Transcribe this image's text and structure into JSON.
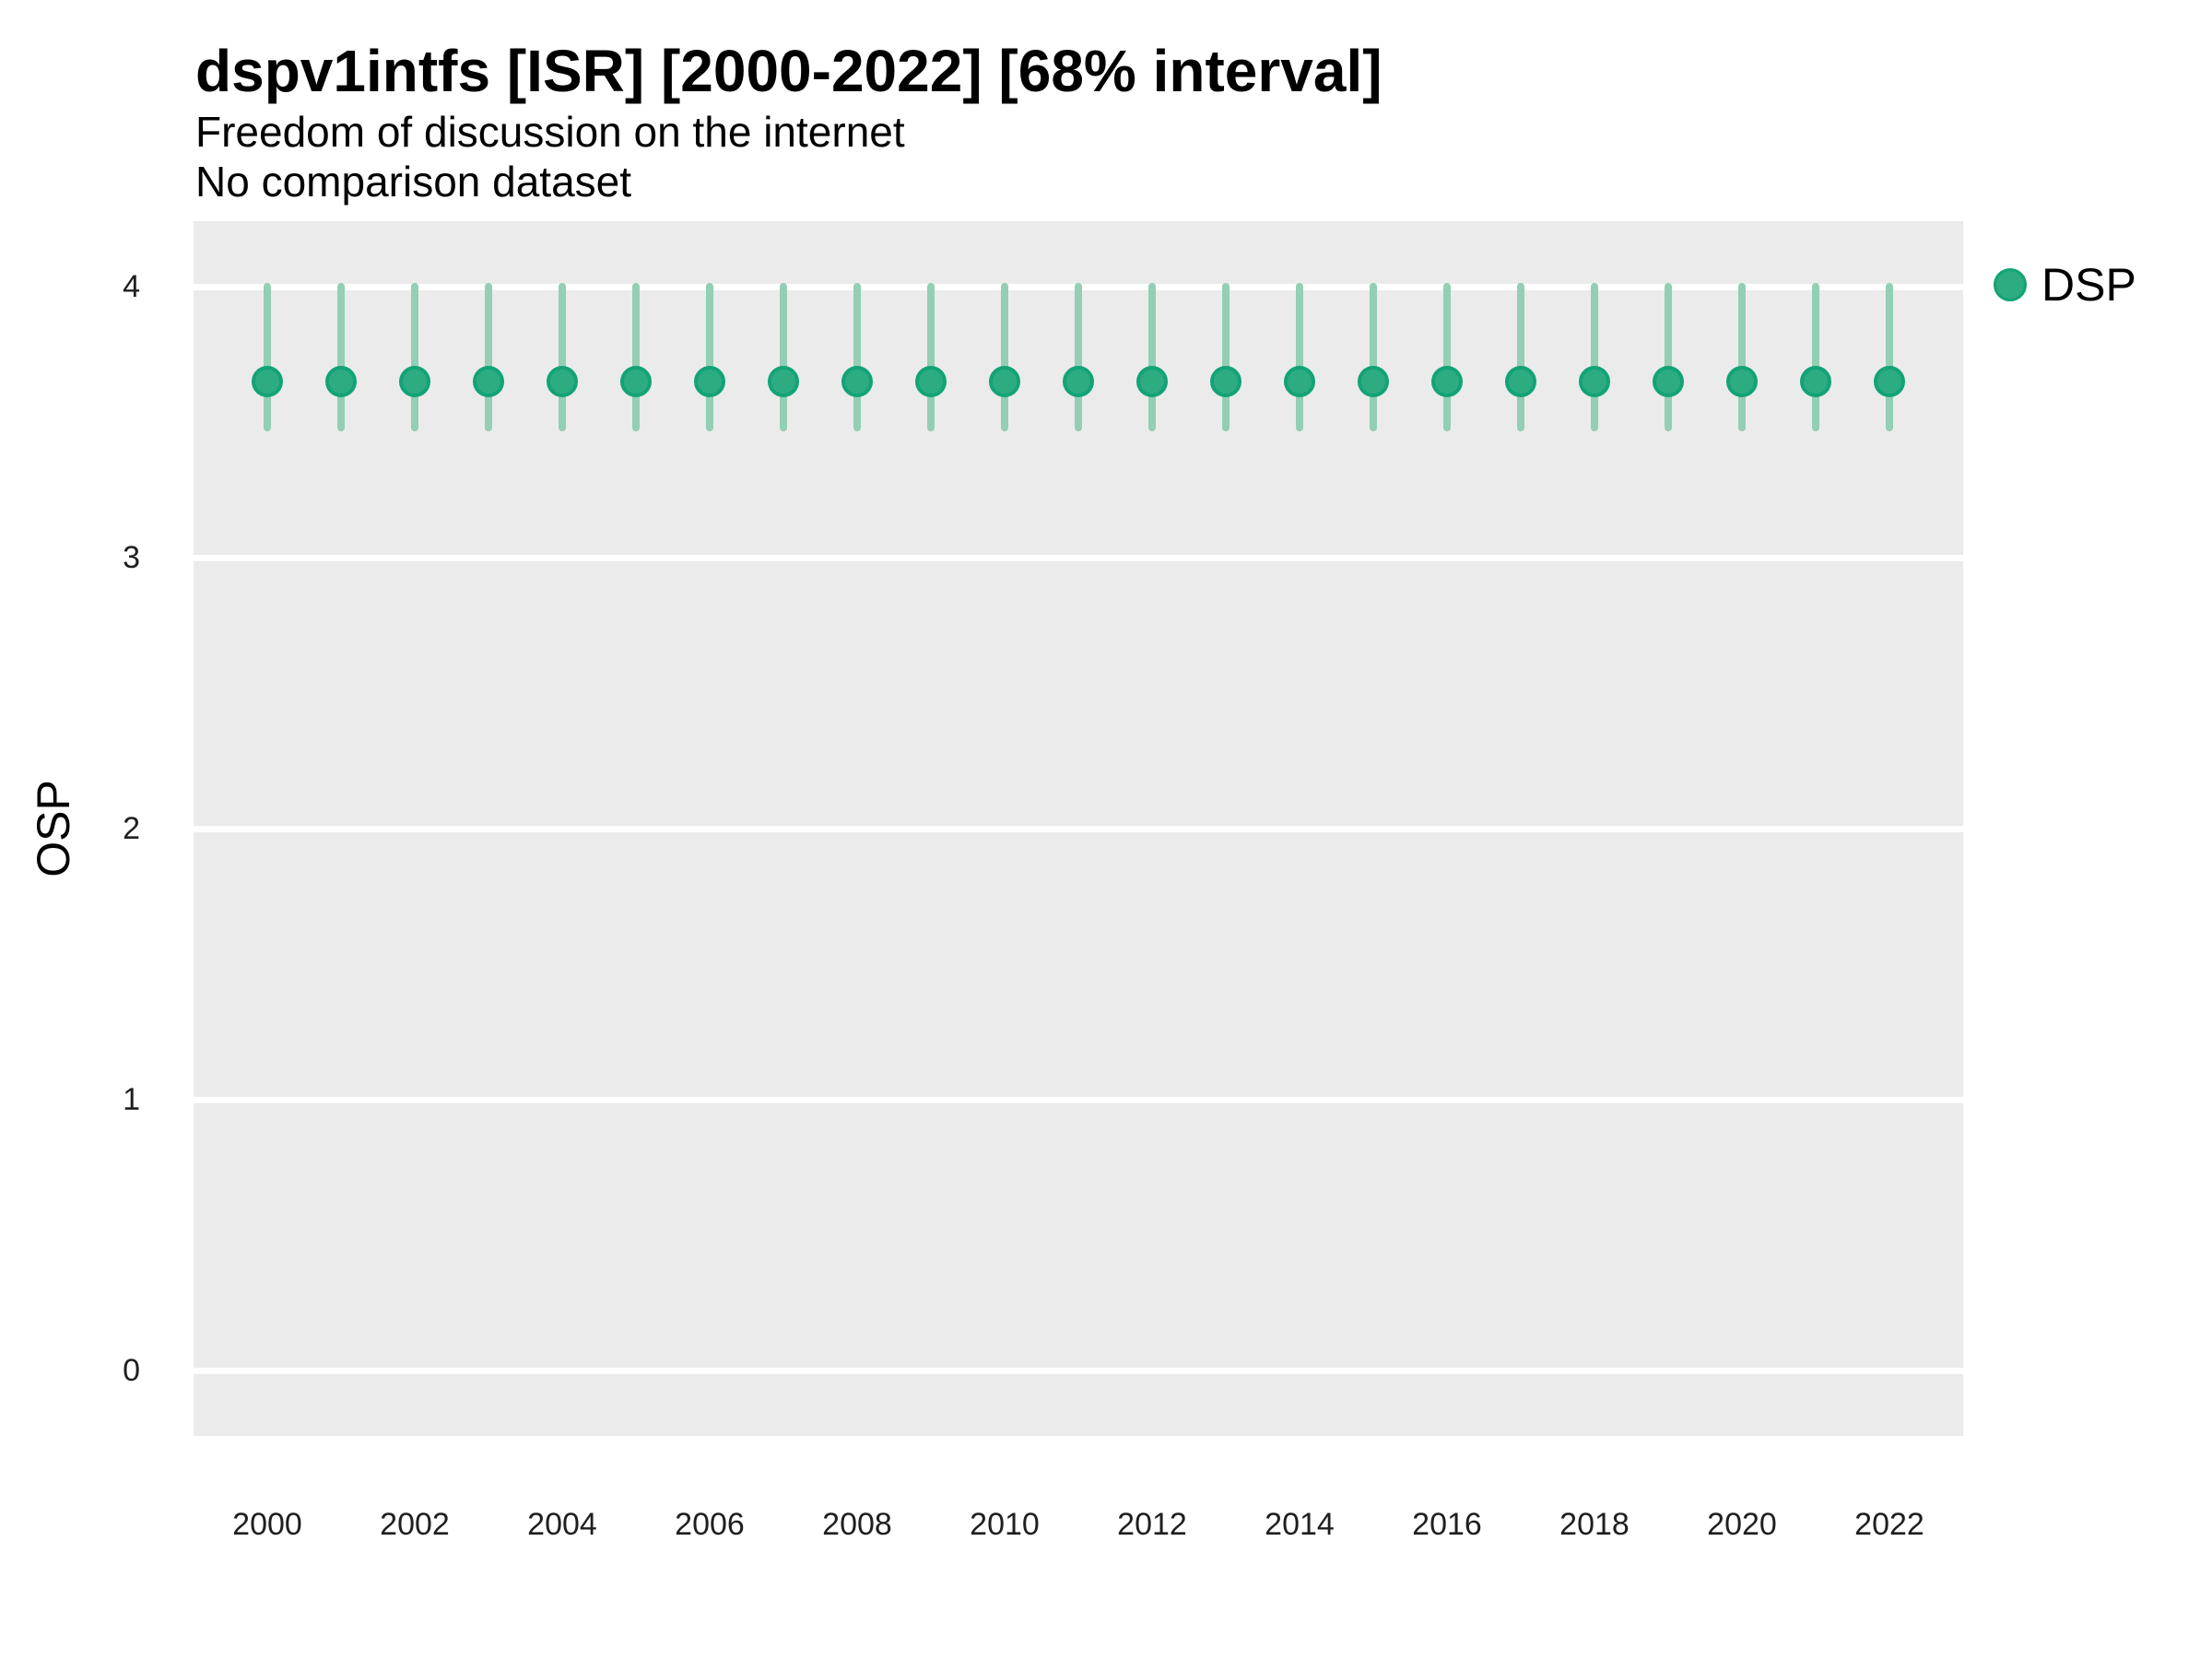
{
  "header": {
    "title": "dspv1intfs [ISR] [2000-2022] [68% interval]",
    "subtitle1": "Freedom of discussion on the internet",
    "subtitle2": "No comparison dataset"
  },
  "axes": {
    "y_title": "OSP",
    "y_ticks": [
      0,
      1,
      2,
      3,
      4
    ],
    "x_tick_labels": [
      "2000",
      "2002",
      "2004",
      "2006",
      "2008",
      "2010",
      "2012",
      "2014",
      "2016",
      "2018",
      "2020",
      "2022"
    ]
  },
  "legend": {
    "position": "right",
    "items": [
      {
        "label": "DSP",
        "color": "#2dac81"
      }
    ]
  },
  "colors": {
    "panel_bg": "#ebebeb",
    "gridline": "#ffffff",
    "point_fill": "#2dac81",
    "point_ring": "#12a377",
    "interval_bar": "#92cfb4"
  },
  "chart_data": {
    "type": "scatter",
    "subtype": "pointrange",
    "title": "dspv1intfs [ISR] [2000-2022] [68% interval]",
    "subtitle": [
      "Freedom of discussion on the internet",
      "No comparison dataset"
    ],
    "xlabel": "",
    "ylabel": "OSP",
    "xlim": [
      1999,
      2023
    ],
    "ylim": [
      -0.24,
      4.25
    ],
    "y_ticks": [
      0,
      1,
      2,
      3,
      4
    ],
    "x_ticks": [
      2000,
      2002,
      2004,
      2006,
      2008,
      2010,
      2012,
      2014,
      2016,
      2018,
      2020,
      2022
    ],
    "grid": "horizontal-major-only",
    "legend_position": "right",
    "interval_label": "68% interval",
    "series": [
      {
        "name": "DSP",
        "x": [
          2000,
          2001,
          2002,
          2003,
          2004,
          2005,
          2006,
          2007,
          2008,
          2009,
          2010,
          2011,
          2012,
          2013,
          2014,
          2015,
          2016,
          2017,
          2018,
          2019,
          2020,
          2021,
          2022
        ],
        "y": [
          3.65,
          3.65,
          3.65,
          3.65,
          3.65,
          3.65,
          3.65,
          3.65,
          3.65,
          3.65,
          3.65,
          3.65,
          3.65,
          3.65,
          3.65,
          3.65,
          3.65,
          3.65,
          3.65,
          3.65,
          3.65,
          3.65,
          3.65
        ],
        "y_low": [
          3.48,
          3.48,
          3.48,
          3.48,
          3.48,
          3.48,
          3.48,
          3.48,
          3.48,
          3.48,
          3.48,
          3.48,
          3.48,
          3.48,
          3.48,
          3.48,
          3.48,
          3.48,
          3.48,
          3.48,
          3.48,
          3.48,
          3.48
        ],
        "y_high": [
          4.0,
          4.0,
          4.0,
          4.0,
          4.0,
          4.0,
          4.0,
          4.0,
          4.0,
          4.0,
          4.0,
          4.0,
          4.0,
          4.0,
          4.0,
          4.0,
          4.0,
          4.0,
          4.0,
          4.0,
          4.0,
          4.0,
          4.0
        ]
      }
    ]
  }
}
